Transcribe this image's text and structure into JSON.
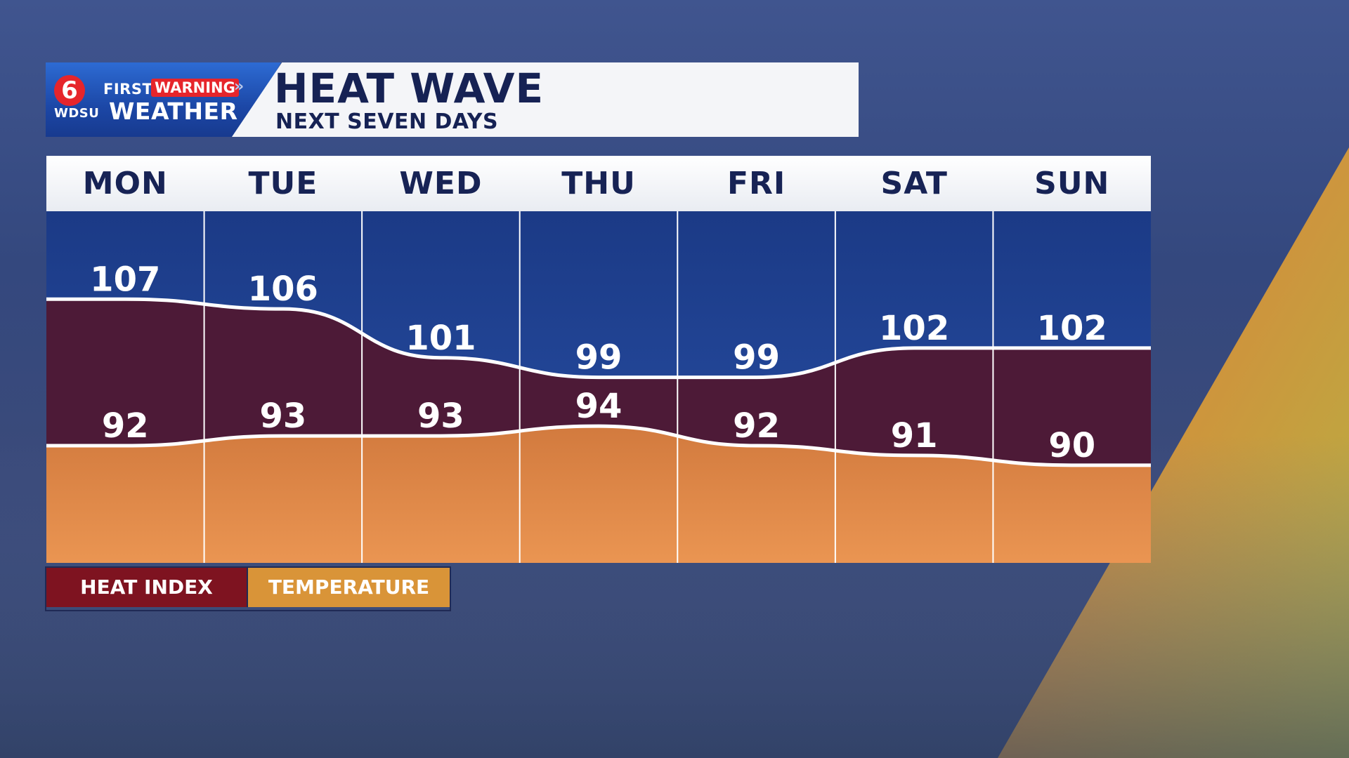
{
  "banner": {
    "station_badge": "6",
    "brand_first": "FIRST",
    "brand_warning": "WARNING",
    "brand_station": "WDSU",
    "brand_weather": "WEATHER",
    "title": "HEAT WAVE",
    "subtitle": "NEXT SEVEN DAYS"
  },
  "chart_data": {
    "type": "area",
    "categories": [
      "MON",
      "TUE",
      "WED",
      "THU",
      "FRI",
      "SAT",
      "SUN"
    ],
    "series": [
      {
        "name": "HEAT INDEX",
        "values": [
          107,
          106,
          101,
          99,
          99,
          102,
          102
        ]
      },
      {
        "name": "TEMPERATURE",
        "values": [
          92,
          93,
          93,
          94,
          92,
          91,
          90
        ]
      }
    ],
    "title": "HEAT WAVE",
    "subtitle": "NEXT SEVEN DAYS",
    "xlabel": "",
    "ylabel": "",
    "ylim": [
      80,
      116
    ],
    "grid": false,
    "legend_placement": "bottom-left"
  },
  "colors": {
    "heat_index": "#7e1320",
    "heat_area": "#4d1a37",
    "temperature": "#d99438",
    "temp_area_top": "#d27a3e",
    "temp_area_bottom": "#ea9552",
    "sky_top": "#1b3a86",
    "sky_bottom": "#2950a6",
    "text_dark": "#172355"
  },
  "legend": {
    "heat_index": "HEAT INDEX",
    "temperature": "TEMPERATURE"
  }
}
